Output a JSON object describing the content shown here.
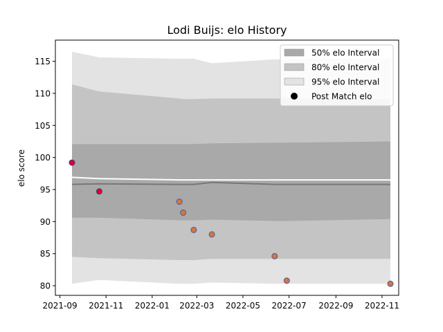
{
  "chart_data": {
    "type": "line",
    "title": "Lodi Buijs: elo History",
    "xlabel": "",
    "ylabel": "elo score",
    "x_ticks": [
      "2021-09",
      "2021-11",
      "2022-01",
      "2022-03",
      "2022-05",
      "2022-07",
      "2022-09",
      "2022-11"
    ],
    "x_range": [
      "2021-08-26",
      "2022-11-23"
    ],
    "y_ticks": [
      80,
      85,
      90,
      95,
      100,
      105,
      110,
      115
    ],
    "ylim": [
      78.5,
      118.3
    ],
    "legend_position": "top-right",
    "legend": [
      {
        "label": "50% elo Interval",
        "kind": "band",
        "color": "#a9a9a9"
      },
      {
        "label": "80% elo Interval",
        "kind": "band",
        "color": "#c4c4c4"
      },
      {
        "label": "95% elo Interval",
        "kind": "band",
        "color": "#e3e3e3"
      },
      {
        "label": "Post Match elo",
        "kind": "marker",
        "color": "#000000"
      }
    ],
    "dates": [
      "2021-09-17",
      "2021-10-23",
      "2022-02-06",
      "2022-02-11",
      "2022-02-25",
      "2022-03-21",
      "2022-06-12",
      "2022-06-28",
      "2022-11-12"
    ],
    "bands": {
      "p95_upper": [
        116.5,
        115.6,
        115.4,
        115.4,
        115.4,
        114.7,
        115.3,
        115.3,
        115.5
      ],
      "p80_upper": [
        111.4,
        110.3,
        109.2,
        109.1,
        109.1,
        109.2,
        109.2,
        109.2,
        109.1
      ],
      "p50_upper": [
        102.1,
        102.1,
        102.1,
        102.1,
        102.1,
        102.2,
        102.3,
        102.3,
        102.5
      ],
      "p50_lower": [
        90.6,
        90.6,
        90.2,
        90.2,
        90.2,
        90.3,
        90.1,
        90.1,
        90.4
      ],
      "p80_lower": [
        84.5,
        84.3,
        84.0,
        84.0,
        84.0,
        84.2,
        84.2,
        84.2,
        84.2
      ],
      "p95_lower": [
        80.3,
        80.9,
        80.3,
        80.3,
        80.3,
        80.5,
        80.3,
        80.3,
        80.3
      ]
    },
    "series": [
      {
        "kind": "mean",
        "values": [
          96.9,
          96.7,
          96.5,
          96.5,
          96.5,
          96.5,
          96.5,
          96.5,
          96.5
        ],
        "color": "#ffffff"
      },
      {
        "kind": "median",
        "values": [
          95.8,
          95.9,
          95.8,
          95.8,
          95.8,
          96.1,
          95.8,
          95.8,
          95.8
        ],
        "color": "#777777"
      }
    ],
    "points": [
      {
        "date": "2021-09-17",
        "value": 99.2,
        "fill": "#e3001b",
        "edge": "#3a3aa0"
      },
      {
        "date": "2021-10-23",
        "value": 94.7,
        "fill": "#e3001b",
        "edge": "#3a3aa0"
      },
      {
        "date": "2022-02-06",
        "value": 93.1,
        "fill": "#d8743e",
        "edge": "#4a5a9a"
      },
      {
        "date": "2022-02-11",
        "value": 91.4,
        "fill": "#d8743e",
        "edge": "#4a5a9a"
      },
      {
        "date": "2022-02-25",
        "value": 88.7,
        "fill": "#d8743e",
        "edge": "#4a5a9a"
      },
      {
        "date": "2022-03-21",
        "value": 88.0,
        "fill": "#d8743e",
        "edge": "#4a5a9a"
      },
      {
        "date": "2022-06-12",
        "value": 84.6,
        "fill": "#d8743e",
        "edge": "#4a5a9a"
      },
      {
        "date": "2022-06-28",
        "value": 80.8,
        "fill": "#d8743e",
        "edge": "#4a5a9a"
      },
      {
        "date": "2022-11-12",
        "value": 80.3,
        "fill": "#d8743e",
        "edge": "#4a5a9a"
      }
    ]
  }
}
